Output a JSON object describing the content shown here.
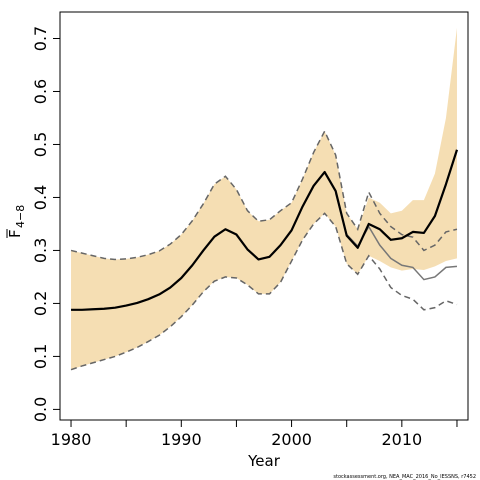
{
  "chart_data": {
    "type": "line",
    "xlabel": "Year",
    "ylabel_main": "F",
    "ylabel_sub": "4−8",
    "xlim": [
      1979,
      2016
    ],
    "ylim": [
      -0.02,
      0.75
    ],
    "x_ticks": [
      1980,
      1990,
      2000,
      2010
    ],
    "y_ticks": [
      0.0,
      0.1,
      0.2,
      0.3,
      0.4,
      0.5,
      0.6,
      0.7
    ],
    "y_tick_labels": [
      "0.0",
      "0.1",
      "0.2",
      "0.3",
      "0.4",
      "0.5",
      "0.6",
      "0.7"
    ],
    "footnote": "stockassessment.org, NEA_MAC_2016_No_IESSNS, r7452",
    "colors": {
      "band": "#f5deb3",
      "estimate": "#000000",
      "retro": "#777777",
      "bound": "#666666"
    },
    "x": [
      1980,
      1981,
      1982,
      1983,
      1984,
      1985,
      1986,
      1987,
      1988,
      1989,
      1990,
      1991,
      1992,
      1993,
      1994,
      1995,
      1996,
      1997,
      1998,
      1999,
      2000,
      2001,
      2002,
      2003,
      2004,
      2005,
      2006,
      2007,
      2008,
      2009,
      2010,
      2011,
      2012,
      2013,
      2014,
      2015
    ],
    "series": [
      {
        "role": "confidence-band",
        "upper": [
          0.3,
          0.295,
          0.29,
          0.285,
          0.283,
          0.284,
          0.287,
          0.292,
          0.299,
          0.312,
          0.33,
          0.356,
          0.388,
          0.425,
          0.44,
          0.415,
          0.375,
          0.355,
          0.358,
          0.375,
          0.39,
          0.435,
          0.485,
          0.525,
          0.48,
          0.37,
          0.34,
          0.4,
          0.39,
          0.37,
          0.375,
          0.395,
          0.395,
          0.445,
          0.55,
          0.72
        ],
        "lower": [
          0.075,
          0.082,
          0.088,
          0.094,
          0.1,
          0.108,
          0.117,
          0.128,
          0.14,
          0.156,
          0.175,
          0.197,
          0.222,
          0.242,
          0.25,
          0.248,
          0.235,
          0.218,
          0.218,
          0.24,
          0.28,
          0.32,
          0.35,
          0.37,
          0.345,
          0.275,
          0.255,
          0.29,
          0.28,
          0.268,
          0.262,
          0.265,
          0.263,
          0.27,
          0.28,
          0.285
        ]
      },
      {
        "role": "estimate",
        "values": [
          0.188,
          0.188,
          0.189,
          0.19,
          0.192,
          0.196,
          0.201,
          0.208,
          0.217,
          0.23,
          0.248,
          0.272,
          0.3,
          0.326,
          0.34,
          0.33,
          0.302,
          0.283,
          0.288,
          0.31,
          0.338,
          0.383,
          0.422,
          0.448,
          0.412,
          0.328,
          0.305,
          0.35,
          0.34,
          0.32,
          0.323,
          0.335,
          0.333,
          0.365,
          0.425,
          0.49
        ]
      },
      {
        "role": "retrospective",
        "x": [
          2004,
          2005,
          2006,
          2007,
          2008,
          2009,
          2010,
          2011,
          2012,
          2013,
          2014,
          2015
        ],
        "values": [
          0.408,
          0.33,
          0.308,
          0.345,
          0.31,
          0.285,
          0.272,
          0.268,
          0.245,
          0.25,
          0.268,
          0.27
        ]
      },
      {
        "role": "upper-bound",
        "values": [
          0.3,
          0.295,
          0.29,
          0.285,
          0.283,
          0.284,
          0.287,
          0.292,
          0.299,
          0.312,
          0.33,
          0.356,
          0.388,
          0.425,
          0.44,
          0.415,
          0.375,
          0.355,
          0.358,
          0.375,
          0.39,
          0.435,
          0.485,
          0.525,
          0.48,
          0.37,
          0.34,
          0.41,
          0.37,
          0.345,
          0.33,
          0.325,
          0.3,
          0.31,
          0.335,
          0.34
        ]
      },
      {
        "role": "lower-bound",
        "values": [
          0.075,
          0.082,
          0.088,
          0.094,
          0.1,
          0.108,
          0.117,
          0.128,
          0.14,
          0.156,
          0.175,
          0.197,
          0.222,
          0.242,
          0.25,
          0.248,
          0.235,
          0.218,
          0.218,
          0.24,
          0.28,
          0.32,
          0.35,
          0.37,
          0.345,
          0.275,
          0.255,
          0.29,
          0.265,
          0.23,
          0.215,
          0.208,
          0.188,
          0.192,
          0.205,
          0.198
        ]
      }
    ]
  }
}
